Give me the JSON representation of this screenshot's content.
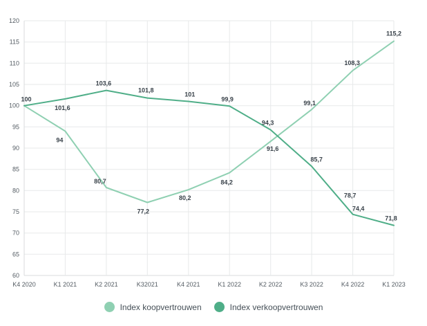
{
  "chart_data": {
    "type": "line",
    "title": "",
    "xlabel": "",
    "ylabel": "",
    "categories": [
      "K4 2020",
      "K1 2021",
      "K2 2021",
      "K32021",
      "K4 2021",
      "K1 2022",
      "K2 2022",
      "K3 2022",
      "K4 2022",
      "K1 2023"
    ],
    "series": [
      {
        "name": "Index koopvertrouwen",
        "color": "#8fd0b2",
        "values": [
          100,
          94,
          80.7,
          77.2,
          80.2,
          84.2,
          91.6,
          99.1,
          108.3,
          115.2
        ],
        "point_labels": [
          "100",
          "94",
          "80,7",
          "77,2",
          "80,2",
          "84,2",
          "91,6",
          "99,1",
          "108,3",
          "115,2"
        ],
        "label_offsets": [
          [
            3,
            -6
          ],
          [
            -8,
            16
          ],
          [
            -9,
            -6
          ],
          [
            -6,
            16
          ],
          [
            -5,
            15
          ],
          [
            -4,
            17
          ],
          [
            3,
            14
          ],
          [
            -3,
            -6
          ],
          [
            -1,
            -8
          ],
          [
            0,
            -8
          ]
        ]
      },
      {
        "name": "Index verkoopvertrouwen",
        "color": "#4fae88",
        "values": [
          100,
          101.6,
          103.6,
          101.8,
          101,
          99.9,
          94.3,
          85.7,
          74.4,
          71.8
        ],
        "point_labels": [
          "",
          "101,6",
          "103,6",
          "101,8",
          "101",
          "99,9",
          "94,3",
          "85,7",
          "74,4",
          "71,8"
        ],
        "label_offsets": [
          [
            0,
            0
          ],
          [
            -4,
            16
          ],
          [
            -4,
            -7
          ],
          [
            -2,
            -8
          ],
          [
            2,
            -7
          ],
          [
            -3,
            -7
          ],
          [
            -4,
            -7
          ],
          [
            7,
            -7
          ],
          [
            8,
            -5
          ],
          [
            -4,
            -7
          ]
        ]
      }
    ],
    "extra_labels": [
      {
        "text": "78,7",
        "series_index": 1,
        "point_index": 8,
        "dx": -4,
        "dy": -24
      }
    ],
    "ylim": [
      60,
      120
    ],
    "ytick_step": 5,
    "decimal_separator": ",",
    "grid": true,
    "legend_position": "bottom"
  },
  "colors": {
    "background": "#ffffff",
    "grid": "#e7e9ea",
    "axis_line": "#d8dbdd",
    "axis_text": "#545c63",
    "data_label": "#39424a",
    "legend_text": "#454f57"
  }
}
